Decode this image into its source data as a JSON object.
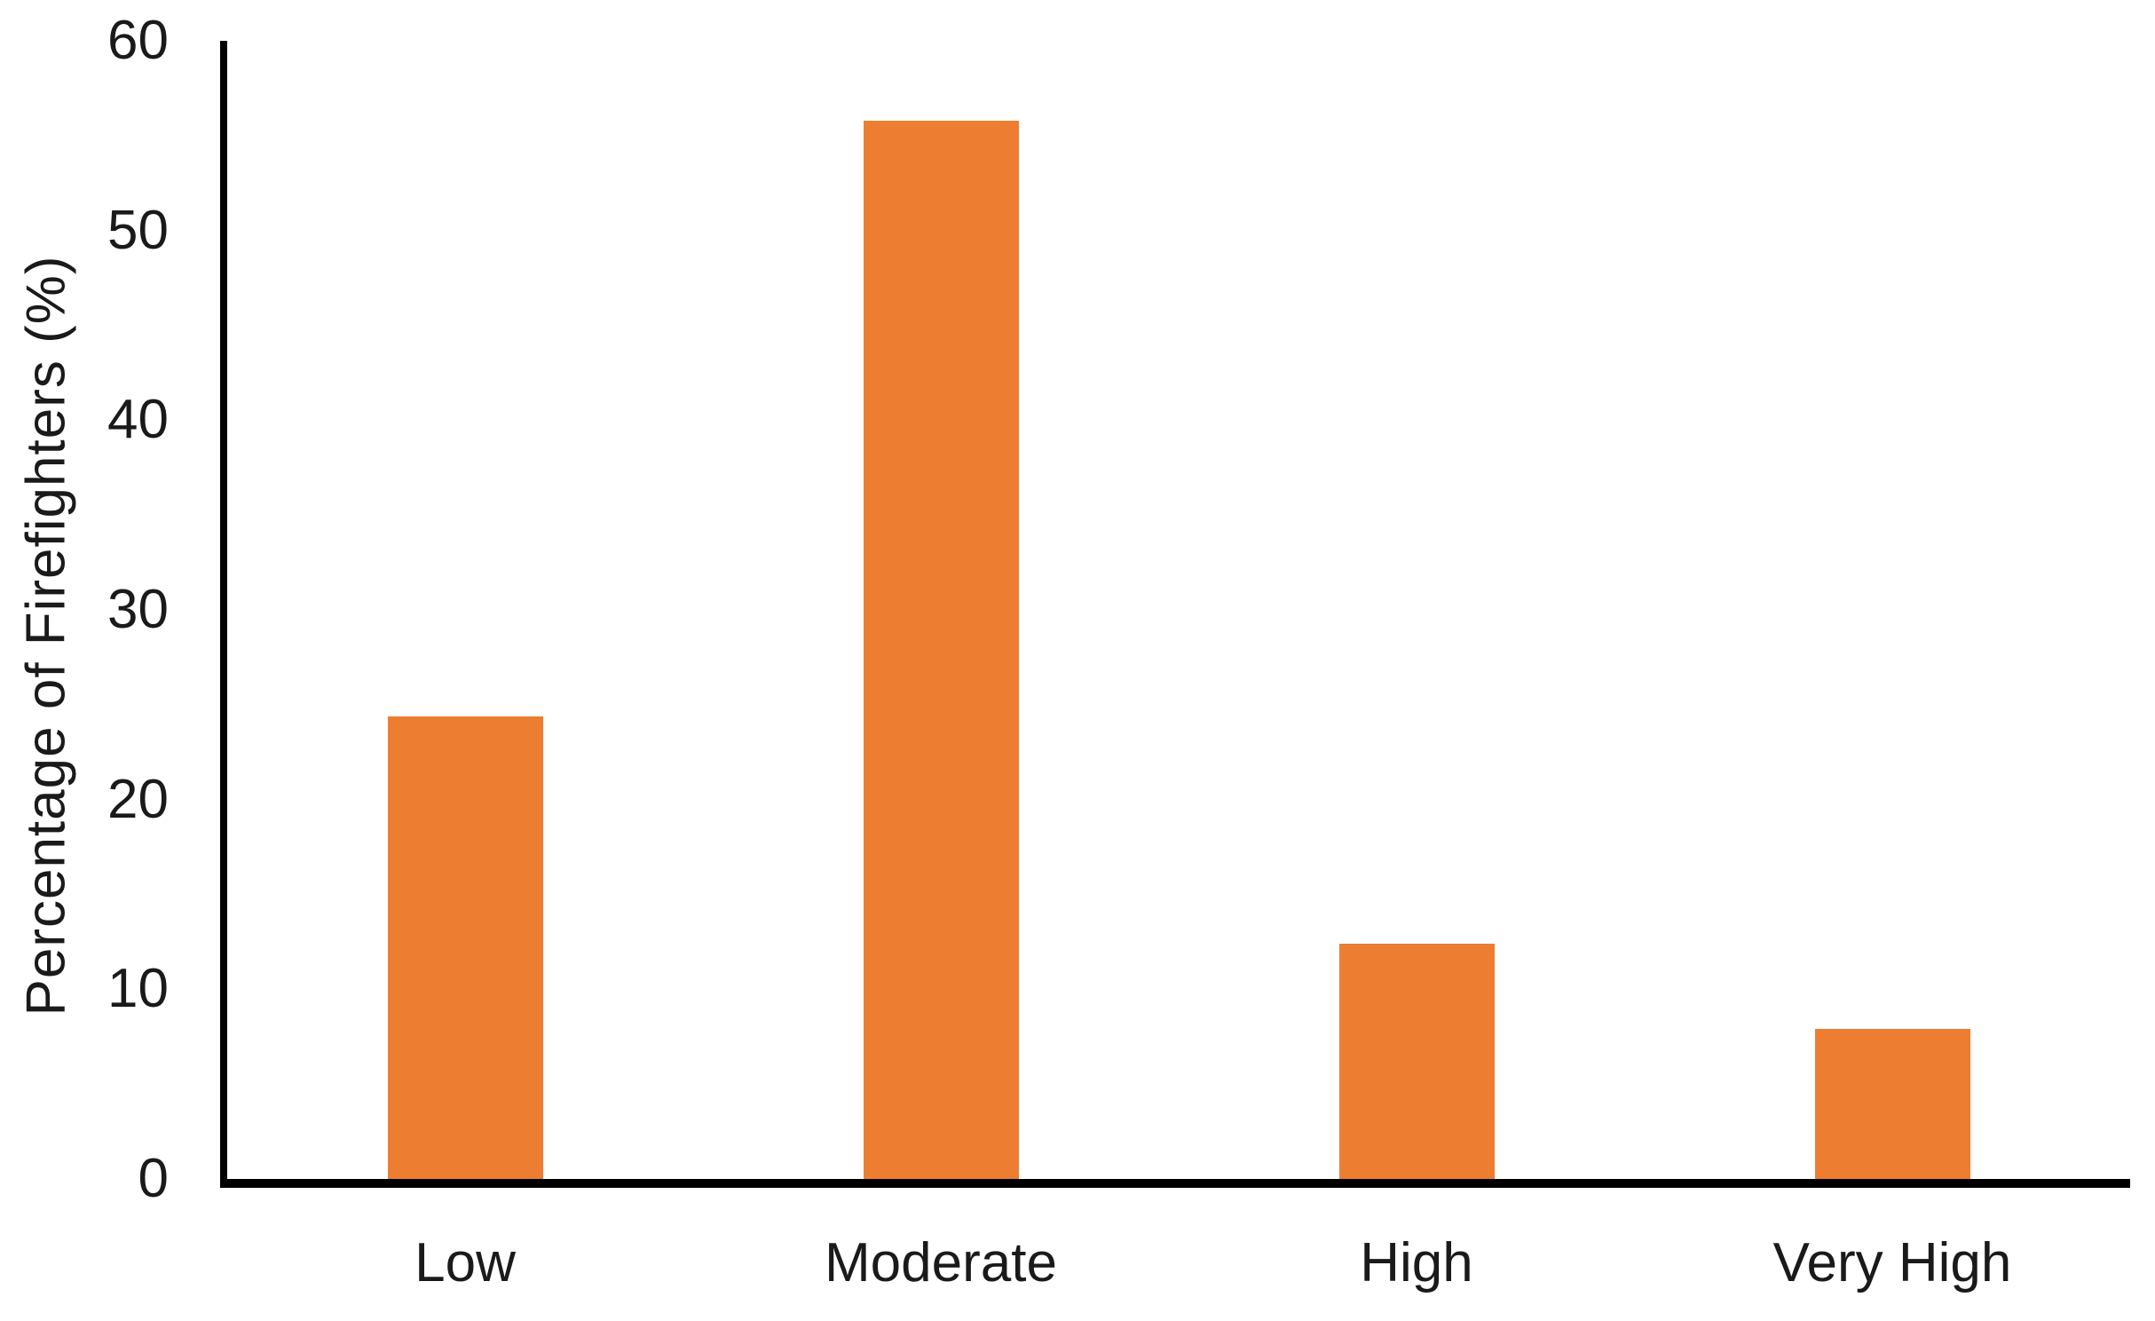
{
  "chart_data": {
    "type": "bar",
    "categories": [
      "Low",
      "Moderate",
      "High",
      "Very High"
    ],
    "values": [
      24.4,
      55.8,
      12.4,
      7.9
    ],
    "title": "",
    "xlabel": "",
    "ylabel": "Percentage of Firefighters (%)",
    "ylim": [
      0,
      60
    ],
    "ytick_step": 10,
    "yticks": [
      0,
      10,
      20,
      30,
      40,
      50,
      60
    ],
    "bar_color": "#ED7D31",
    "axis_color": "#000000",
    "text_color": "#1a1a1a",
    "background_color": "#FFFFFF",
    "grid": "off",
    "legend_position": "none"
  }
}
